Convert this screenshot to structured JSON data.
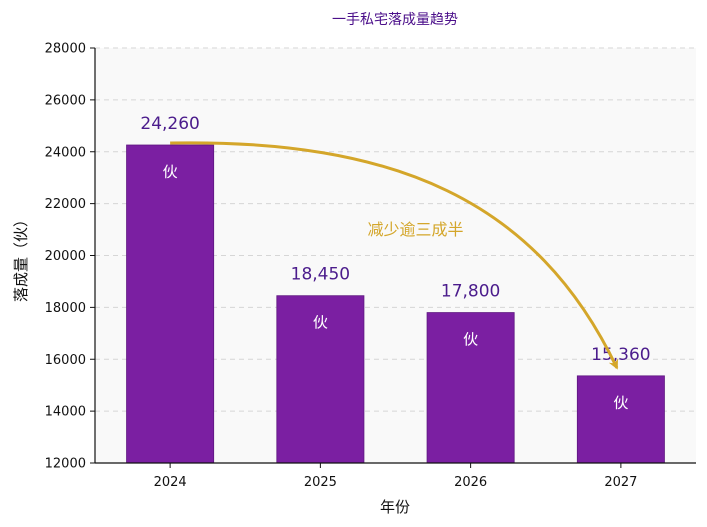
{
  "chart_data": {
    "type": "bar",
    "title": "一手私宅落成量趋势",
    "xlabel": "年份",
    "ylabel": "落成量（伙）",
    "categories": [
      "2024",
      "2025",
      "2026",
      "2027"
    ],
    "values": [
      24260,
      18450,
      17800,
      15360
    ],
    "value_labels": [
      "24,260",
      "18,450",
      "17,800",
      "15,360"
    ],
    "unit_label": "伙",
    "ylim": [
      12000,
      28000
    ],
    "yticks": [
      12000,
      14000,
      16000,
      18000,
      20000,
      22000,
      24000,
      26000,
      28000
    ],
    "ytick_labels": [
      "12000",
      "14000",
      "16000",
      "18000",
      "20000",
      "22000",
      "24000",
      "26000",
      "28000"
    ],
    "grid": true,
    "bar_color": "#7b1fa2",
    "annotation": {
      "text": "减少逾三成半",
      "from_category": "2024",
      "to_category": "2027",
      "color": "#d4a62a"
    }
  }
}
